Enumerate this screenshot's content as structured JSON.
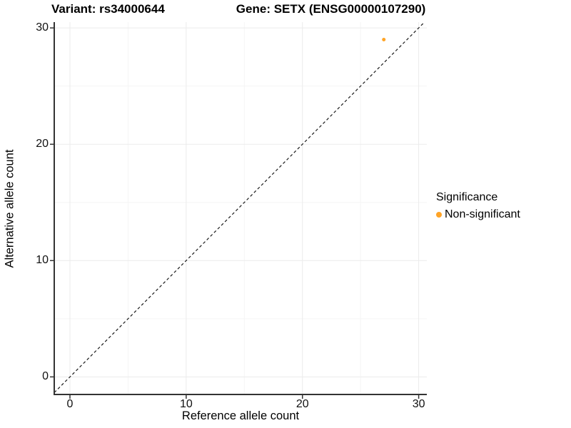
{
  "titles": {
    "left": "Variant: rs34000644",
    "right": "Gene: SETX (ENSG00000107290)"
  },
  "chart_data": {
    "type": "scatter",
    "title": "Variant: rs34000644        Gene: SETX (ENSG00000107290)",
    "xlabel": "Reference allele count",
    "ylabel": "Alternative allele count",
    "x_domain": [
      -1.35,
      30.7
    ],
    "y_domain": [
      -1.45,
      30.5
    ],
    "x_ticks": [
      0,
      10,
      20,
      30
    ],
    "y_ticks": [
      0,
      10,
      20,
      30
    ],
    "x_minor_ticks": [
      5,
      15,
      25
    ],
    "y_minor_ticks": [
      5,
      15,
      25
    ],
    "grid": true,
    "points": [
      {
        "x": 27,
        "y": 29,
        "series": "Non-significant"
      }
    ],
    "reference_line": {
      "style": "dashed",
      "slope": 1,
      "intercept": 0
    },
    "legend": {
      "title": "Significance",
      "position": "right",
      "entries": [
        {
          "label": "Non-significant",
          "color": "#FFA426"
        }
      ]
    },
    "colors": {
      "point": "#FFA426",
      "axis": "#333333",
      "grid_major": "#ebebeb",
      "grid_minor": "#f5f5f5",
      "reference_line": "#1a1a1a",
      "text": "#000000"
    }
  }
}
